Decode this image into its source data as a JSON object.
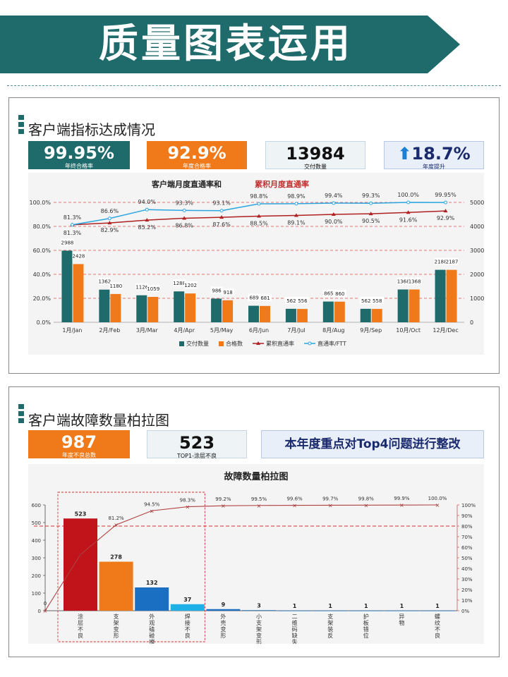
{
  "header": {
    "title": "质量图表运用"
  },
  "section1": {
    "title": "客户端指标达成情况",
    "kpis": [
      {
        "value": "99.95%",
        "label": "年终合格率"
      },
      {
        "value": "92.9%",
        "label": "年度合格率"
      },
      {
        "value": "13984",
        "label": "交付数量"
      },
      {
        "value": "18.7%",
        "label": "年度提升",
        "icon": "up-arrow-icon"
      }
    ]
  },
  "section2": {
    "title": "客户端故障数量柏拉图",
    "kpis": [
      {
        "value": "987",
        "label": "年度不良总数"
      },
      {
        "value": "523",
        "label": "TOP1-涂层不良"
      }
    ],
    "banner": "本年度重点对Top4问题进行整改"
  },
  "colors": {
    "teal": "#1f6b6b",
    "orange": "#f07a1a",
    "red": "#c0141a",
    "blue": "#1b6fc2",
    "cyan": "#1fb0e8",
    "line_red": "#b02020",
    "line_blue": "#2aa6df"
  },
  "chart_data": [
    {
      "type": "bar",
      "title_part1": "客户端月度直通率和",
      "title_part2": "累积月度直通率",
      "categories": [
        "1月/Jan",
        "2月/Feb",
        "3月/Mar",
        "4月/Apr",
        "5月/May",
        "6月/Jun",
        "7月/Jul",
        "8月/Aug",
        "9月/Sep",
        "10月/Oct",
        "12月/Dec"
      ],
      "series": [
        {
          "name": "交付数量",
          "kind": "bar",
          "axis": "right",
          "values": [
            2988,
            1362,
            1126,
            1288,
            986,
            689,
            562,
            865,
            562,
            1368,
            2188
          ]
        },
        {
          "name": "合格数",
          "kind": "bar",
          "axis": "right",
          "values": [
            2428,
            1180,
            1059,
            1202,
            918,
            681,
            556,
            860,
            558,
            1368,
            2187
          ]
        },
        {
          "name": "累积直通率",
          "kind": "line",
          "axis": "left",
          "values": [
            81.3,
            82.9,
            85.2,
            86.8,
            87.6,
            88.5,
            89.1,
            90.0,
            90.5,
            91.6,
            92.9
          ]
        },
        {
          "name": "直通率/FTT",
          "kind": "line",
          "axis": "left",
          "values": [
            81.3,
            86.6,
            94.0,
            93.3,
            93.1,
            98.8,
            98.9,
            99.4,
            99.3,
            100.0,
            99.95
          ]
        }
      ],
      "y_left": {
        "range": [
          0,
          100
        ],
        "ticks": [
          "0.0%",
          "20.0%",
          "40.0%",
          "60.0%",
          "80.0%",
          "100.0%"
        ]
      },
      "y_right": {
        "range": [
          0,
          5000
        ],
        "ticks": [
          "0",
          "1000",
          "2000",
          "3000",
          "4000",
          "5000"
        ]
      },
      "labels_ftt": [
        "81.3%",
        "86.6%",
        "94.0%",
        "93.3%",
        "93.1%",
        "98.8%",
        "98.9%",
        "99.4%",
        "99.3%",
        "100.0%",
        "99.95%"
      ],
      "labels_cum": [
        "81.3%",
        "82.9%",
        "85.2%",
        "86.8%",
        "87.6%",
        "88.5%",
        "89.1%",
        "90.0%",
        "90.5%",
        "91.6%",
        "92.9%"
      ],
      "legend_position": "bottom",
      "grid": "dashed-red-horizontal"
    },
    {
      "type": "bar",
      "title": "故障数量柏拉图",
      "categories": [
        "涂层不良",
        "支架变形",
        "外观磕碰擦伤",
        "焊接不良",
        "外壳变形",
        "小支架变形",
        "二维码缺失",
        "支架装反",
        "护板错位",
        "异物",
        "螺纹不良"
      ],
      "values": [
        523,
        278,
        132,
        37,
        9,
        3,
        1,
        1,
        1,
        1,
        1
      ],
      "bar_colors": [
        "red",
        "orange",
        "blue",
        "cyan",
        "blue",
        "blue",
        "blue",
        "blue",
        "blue",
        "blue",
        "blue"
      ],
      "cumulative_percent": [
        53.0,
        81.2,
        94.5,
        98.3,
        99.2,
        99.5,
        99.6,
        99.7,
        99.8,
        99.9,
        100.0
      ],
      "cumulative_labels": [
        "",
        "81.2%",
        "94.5%",
        "98.3%",
        "99.2%",
        "99.5%",
        "99.6%",
        "99.7%",
        "99.8%",
        "99.9%",
        "100.0%"
      ],
      "cum_start_label": "0",
      "y_left": {
        "range": [
          0,
          600
        ],
        "ticks": [
          "0",
          "100",
          "200",
          "300",
          "400",
          "500",
          "600"
        ]
      },
      "y_right": {
        "range": [
          0,
          100
        ],
        "ticks": [
          "0%",
          "10%",
          "20%",
          "30%",
          "40%",
          "50%",
          "60%",
          "70%",
          "80%",
          "90%",
          "100%"
        ]
      },
      "reference_line_percent": 80,
      "highlight": "Top4"
    }
  ]
}
